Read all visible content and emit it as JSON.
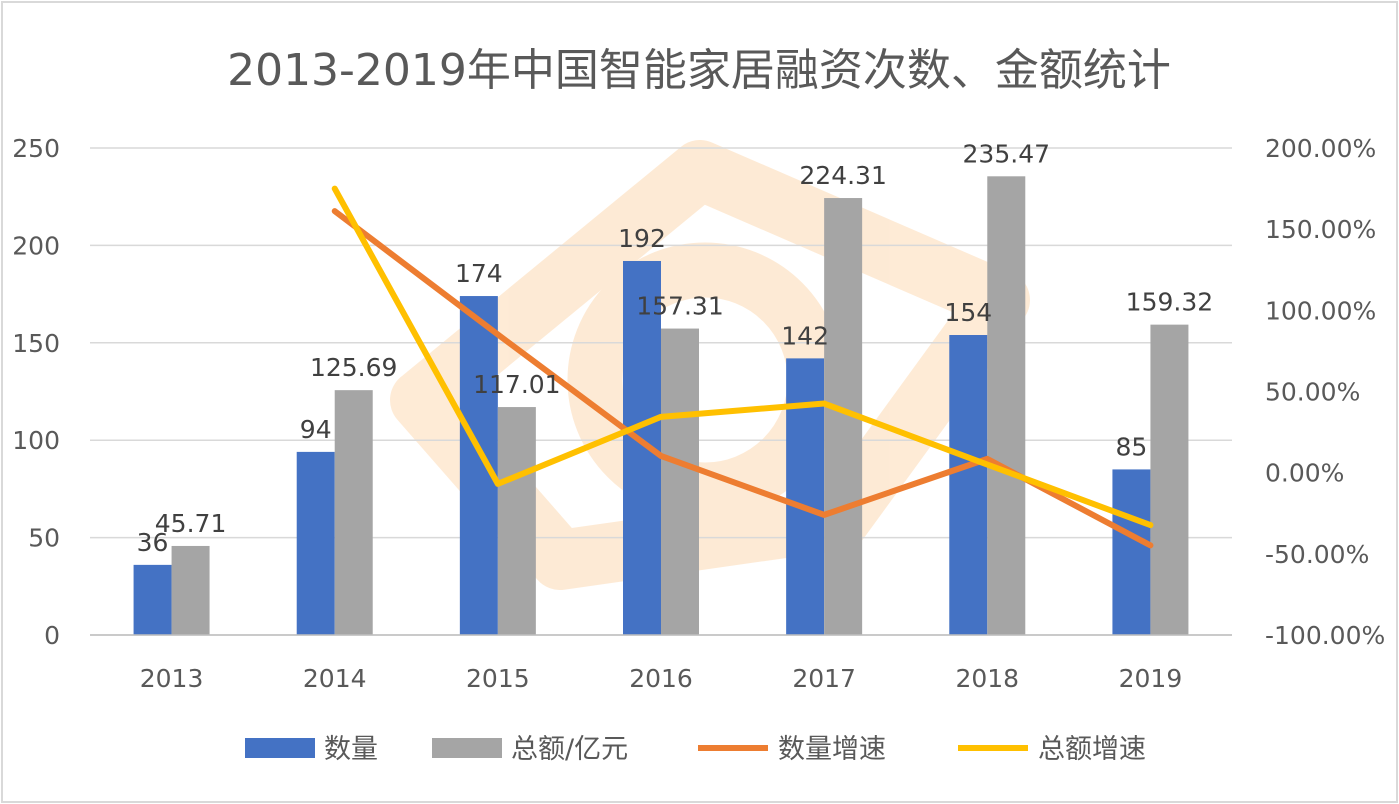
{
  "chart_data": {
    "type": "bar",
    "title": "2013-2019年中国智能家居融资次数、金额统计",
    "categories": [
      "2013",
      "2014",
      "2015",
      "2016",
      "2017",
      "2018",
      "2019"
    ],
    "series": [
      {
        "name": "数量",
        "type": "bar",
        "axis": "left",
        "color": "#4472c4",
        "values": [
          36,
          94,
          174,
          192,
          142,
          154,
          85
        ],
        "labels": [
          "36",
          "94",
          "174",
          "192",
          "142",
          "154",
          "85"
        ]
      },
      {
        "name": "总额/亿元",
        "type": "bar",
        "axis": "left",
        "color": "#a5a5a5",
        "values": [
          45.71,
          125.69,
          117.01,
          157.31,
          224.31,
          235.47,
          159.32
        ],
        "labels": [
          "45.71",
          "125.69",
          "117.01",
          "157.31",
          "224.31",
          "235.47",
          "159.32"
        ]
      },
      {
        "name": "数量增速",
        "type": "line",
        "axis": "right",
        "color": "#ed7d31",
        "values": [
          null,
          161.1,
          85.1,
          10.3,
          -26.0,
          8.5,
          -44.8
        ]
      },
      {
        "name": "总额增速",
        "type": "line",
        "axis": "right",
        "color": "#ffc000",
        "values": [
          null,
          175.0,
          -6.9,
          34.4,
          42.6,
          5.0,
          -32.3
        ]
      }
    ],
    "y_left": {
      "min": 0,
      "max": 250,
      "ticks": [
        "0",
        "50",
        "100",
        "150",
        "200",
        "250"
      ]
    },
    "y_right": {
      "min": -100,
      "max": 200,
      "ticks": [
        "-100.00%",
        "-50.00%",
        "0.00%",
        "50.00%",
        "100.00%",
        "150.00%",
        "200.00%"
      ]
    },
    "grid": true,
    "legend_position": "bottom"
  }
}
